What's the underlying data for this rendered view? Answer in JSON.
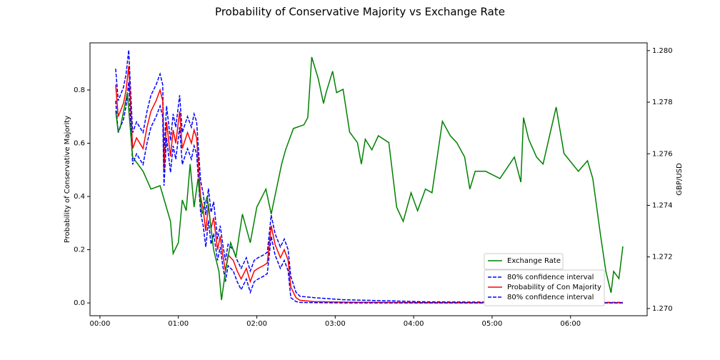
{
  "chart_data": {
    "type": "line",
    "title": "Probability of Conservative Majority vs Exchange Rate",
    "y_label": "Probability of Conservative Majority",
    "y2_label": "GBP/USD",
    "xlim": [
      -7.6,
      418.6
    ],
    "xticks": [
      {
        "value": 0,
        "label": "00:00"
      },
      {
        "value": 60,
        "label": "01:00"
      },
      {
        "value": 120,
        "label": "02:00"
      },
      {
        "value": 180,
        "label": "03:00"
      },
      {
        "value": 240,
        "label": "04:00"
      },
      {
        "value": 300,
        "label": "05:00"
      },
      {
        "value": 360,
        "label": "06:00"
      }
    ],
    "ylim": [
      -0.048,
      0.977
    ],
    "yticks": [
      {
        "value": 0,
        "label": "0.0"
      },
      0.2,
      0.4,
      0.6,
      0.8
    ],
    "y2lim": [
      1.26972,
      1.2803
    ],
    "y2ticks": [
      {
        "value": 1.27,
        "label": "1.270"
      },
      1.272,
      1.274,
      1.276,
      1.278,
      {
        "value": 1.28,
        "label": "1.280"
      }
    ],
    "series": [
      {
        "name": "80% confidence interval",
        "color": "#0000ff",
        "dashed": true,
        "legend": 2,
        "x": [
          12,
          14,
          18,
          20,
          22,
          25,
          28,
          33,
          36,
          39,
          43,
          46,
          48,
          49,
          51,
          54,
          56,
          58,
          61,
          63,
          67,
          70,
          72,
          74,
          77,
          79,
          81,
          83,
          85,
          87,
          90,
          92,
          94,
          96,
          98,
          102,
          105,
          108,
          112,
          115,
          118,
          121,
          125,
          128,
          131,
          134,
          138,
          141,
          144,
          146,
          150,
          153,
          164,
          186,
          219,
          251,
          306,
          361,
          400
        ],
        "values": [
          0.88,
          0.76,
          0.81,
          0.86,
          0.95,
          0.64,
          0.68,
          0.64,
          0.72,
          0.78,
          0.82,
          0.86,
          0.82,
          0.56,
          0.74,
          0.61,
          0.71,
          0.66,
          0.78,
          0.64,
          0.7,
          0.66,
          0.71,
          0.68,
          0.46,
          0.41,
          0.33,
          0.43,
          0.34,
          0.38,
          0.24,
          0.29,
          0.22,
          0.16,
          0.22,
          0.2,
          0.16,
          0.13,
          0.17,
          0.12,
          0.16,
          0.17,
          0.18,
          0.19,
          0.33,
          0.26,
          0.21,
          0.24,
          0.2,
          0.1,
          0.04,
          0.025,
          0.02,
          0.012,
          0.008,
          0.004,
          0.003,
          0.002,
          0.002
        ]
      },
      {
        "name": "Probability of Con Majority",
        "color": "#ff0000",
        "dashed": false,
        "legend": 2,
        "x": [
          12,
          14,
          18,
          20,
          22,
          25,
          28,
          33,
          36,
          39,
          43,
          46,
          48,
          49,
          51,
          54,
          56,
          58,
          61,
          63,
          67,
          70,
          72,
          74,
          77,
          79,
          81,
          83,
          85,
          87,
          90,
          92,
          94,
          96,
          98,
          102,
          105,
          108,
          112,
          115,
          118,
          121,
          125,
          128,
          131,
          134,
          138,
          141,
          144,
          146,
          150,
          153,
          164,
          186,
          219,
          251,
          306,
          361,
          400
        ],
        "values": [
          0.82,
          0.7,
          0.75,
          0.8,
          0.89,
          0.58,
          0.62,
          0.58,
          0.66,
          0.72,
          0.76,
          0.8,
          0.76,
          0.5,
          0.68,
          0.55,
          0.65,
          0.6,
          0.72,
          0.58,
          0.64,
          0.6,
          0.65,
          0.62,
          0.4,
          0.35,
          0.27,
          0.37,
          0.28,
          0.32,
          0.2,
          0.25,
          0.18,
          0.12,
          0.18,
          0.16,
          0.12,
          0.09,
          0.13,
          0.08,
          0.12,
          0.13,
          0.14,
          0.15,
          0.29,
          0.22,
          0.17,
          0.2,
          0.16,
          0.06,
          0.02,
          0.01,
          0.005,
          0.003,
          0.002,
          0.001,
          0.001,
          0.001,
          0.001
        ]
      },
      {
        "name": "80% confidence interval",
        "color": "#0000ff",
        "dashed": true,
        "legend": 2,
        "x": [
          12,
          14,
          18,
          20,
          22,
          25,
          28,
          33,
          36,
          39,
          43,
          46,
          48,
          49,
          51,
          54,
          56,
          58,
          61,
          63,
          67,
          70,
          72,
          74,
          77,
          79,
          81,
          83,
          85,
          87,
          90,
          92,
          94,
          96,
          98,
          102,
          105,
          108,
          112,
          115,
          118,
          121,
          125,
          128,
          131,
          134,
          138,
          141,
          144,
          146,
          150,
          153,
          164,
          186,
          219,
          251,
          306,
          361,
          400
        ],
        "values": [
          0.76,
          0.64,
          0.69,
          0.74,
          0.83,
          0.52,
          0.56,
          0.52,
          0.6,
          0.66,
          0.7,
          0.74,
          0.7,
          0.44,
          0.62,
          0.49,
          0.59,
          0.54,
          0.66,
          0.52,
          0.58,
          0.54,
          0.59,
          0.56,
          0.34,
          0.29,
          0.21,
          0.31,
          0.22,
          0.26,
          0.16,
          0.21,
          0.14,
          0.08,
          0.14,
          0.12,
          0.08,
          0.05,
          0.09,
          0.04,
          0.08,
          0.09,
          0.1,
          0.11,
          0.25,
          0.18,
          0.13,
          0.16,
          0.12,
          0.02,
          0.005,
          0.002,
          0.001,
          0,
          0,
          0,
          0,
          0,
          0
        ]
      },
      {
        "name": "Exchange Rate",
        "color": "#008000",
        "dashed": false,
        "legend": 1,
        "axis": "y2",
        "x": [
          12,
          14,
          16,
          21,
          25,
          33,
          39,
          46,
          54,
          56,
          60,
          63,
          66,
          69,
          72,
          75,
          78,
          82,
          87,
          91,
          93,
          96,
          100,
          104,
          109,
          115,
          120,
          127,
          131,
          139,
          142,
          148,
          156,
          159,
          162,
          167,
          171,
          173,
          178,
          181,
          186,
          191,
          197,
          200,
          203,
          208,
          213,
          221,
          227,
          232,
          238,
          243,
          249,
          254,
          262,
          268,
          273,
          279,
          283,
          287,
          295,
          306,
          317,
          322,
          324,
          328,
          334,
          339,
          349,
          355,
          366,
          373,
          377,
          383,
          387,
          391,
          393,
          397,
          400
        ],
        "values": [
          1.27767,
          1.27684,
          1.27712,
          1.27837,
          1.27587,
          1.27532,
          1.27463,
          1.27476,
          1.27338,
          1.27213,
          1.27255,
          1.27421,
          1.27379,
          1.2756,
          1.27393,
          1.27504,
          1.27366,
          1.27435,
          1.27227,
          1.27144,
          1.27033,
          1.27144,
          1.27255,
          1.27199,
          1.27366,
          1.27255,
          1.27393,
          1.27463,
          1.27366,
          1.2756,
          1.27615,
          1.27698,
          1.27712,
          1.2774,
          1.27975,
          1.27892,
          1.27795,
          1.27837,
          1.2792,
          1.27837,
          1.2785,
          1.27684,
          1.27643,
          1.2756,
          1.27656,
          1.27615,
          1.2767,
          1.27643,
          1.27393,
          1.27338,
          1.27449,
          1.27379,
          1.27463,
          1.27449,
          1.27726,
          1.2767,
          1.27643,
          1.27587,
          1.27463,
          1.27532,
          1.27532,
          1.27504,
          1.27587,
          1.2749,
          1.2774,
          1.27656,
          1.27587,
          1.2756,
          1.27781,
          1.27601,
          1.27532,
          1.27573,
          1.27504,
          1.27283,
          1.27144,
          1.27061,
          1.27144,
          1.27116,
          1.27241
        ]
      }
    ]
  }
}
